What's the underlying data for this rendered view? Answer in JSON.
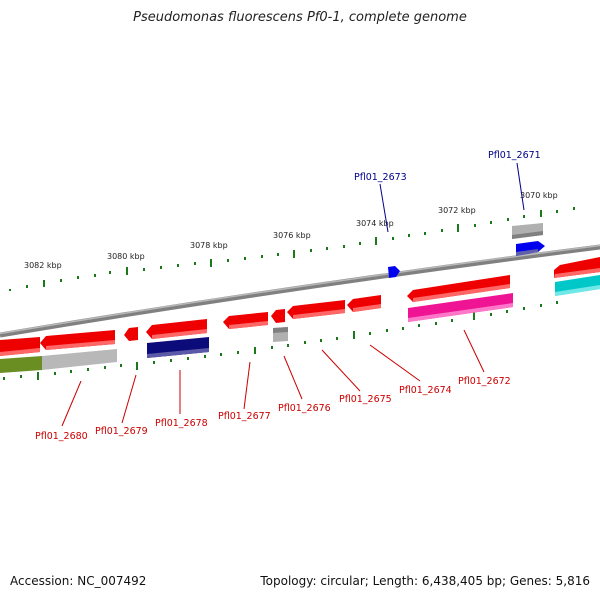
{
  "title": "Pseudomonas fluorescens Pf0-1, complete genome",
  "footer": {
    "accession": "Accession: NC_007492",
    "topology": "Topology: circular; Length: 6,438,405 bp; Genes: 5,816"
  },
  "colors": {
    "backbone": "#808080",
    "gene_red": "#ee0000",
    "gene_navy": "#0b0b7a",
    "gene_blue": "#0000ee",
    "gene_magenta": "#ee1493",
    "gene_cyan": "#00c8c8",
    "gene_olive": "#6b8e23",
    "gene_gray": "#b0b0b0",
    "tick": "#1a7a1a",
    "label_red": "#cc0000",
    "label_blue": "#00008b"
  },
  "kbp_labels": [
    "3082 kbp",
    "3080 kbp",
    "3078 kbp",
    "3076 kbp",
    "3074 kbp",
    "3072 kbp",
    "3070 kbp"
  ],
  "genes_bottom": [
    "Pfl01_2680",
    "Pfl01_2679",
    "Pfl01_2678",
    "Pfl01_2677",
    "Pfl01_2676",
    "Pfl01_2675",
    "Pfl01_2674",
    "Pfl01_2672"
  ],
  "genes_top": [
    "Pfl01_2673",
    "Pfl01_2671"
  ]
}
